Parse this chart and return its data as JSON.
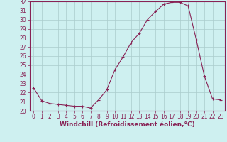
{
  "x": [
    0,
    1,
    2,
    3,
    4,
    5,
    6,
    7,
    8,
    9,
    10,
    11,
    12,
    13,
    14,
    15,
    16,
    17,
    18,
    19,
    20,
    21,
    22,
    23
  ],
  "y": [
    22.5,
    21.1,
    20.8,
    20.7,
    20.6,
    20.5,
    20.5,
    20.3,
    21.2,
    22.3,
    24.5,
    25.9,
    27.5,
    28.5,
    30.0,
    30.9,
    31.7,
    31.9,
    31.9,
    31.5,
    27.8,
    23.8,
    21.3,
    21.2
  ],
  "line_color": "#882255",
  "marker": "+",
  "marker_size": 3,
  "marker_linewidth": 0.8,
  "background_color": "#cef0f0",
  "grid_color": "#aacccc",
  "xlabel": "Windchill (Refroidissement éolien,°C)",
  "ylabel": "",
  "ylim": [
    20,
    32
  ],
  "xlim": [
    -0.5,
    23.5
  ],
  "yticks": [
    20,
    21,
    22,
    23,
    24,
    25,
    26,
    27,
    28,
    29,
    30,
    31,
    32
  ],
  "xticks": [
    0,
    1,
    2,
    3,
    4,
    5,
    6,
    7,
    8,
    9,
    10,
    11,
    12,
    13,
    14,
    15,
    16,
    17,
    18,
    19,
    20,
    21,
    22,
    23
  ],
  "tick_label_size": 5.5,
  "xlabel_size": 6.5,
  "line_width": 0.8,
  "spine_color": "#882255",
  "label_color": "#882255"
}
